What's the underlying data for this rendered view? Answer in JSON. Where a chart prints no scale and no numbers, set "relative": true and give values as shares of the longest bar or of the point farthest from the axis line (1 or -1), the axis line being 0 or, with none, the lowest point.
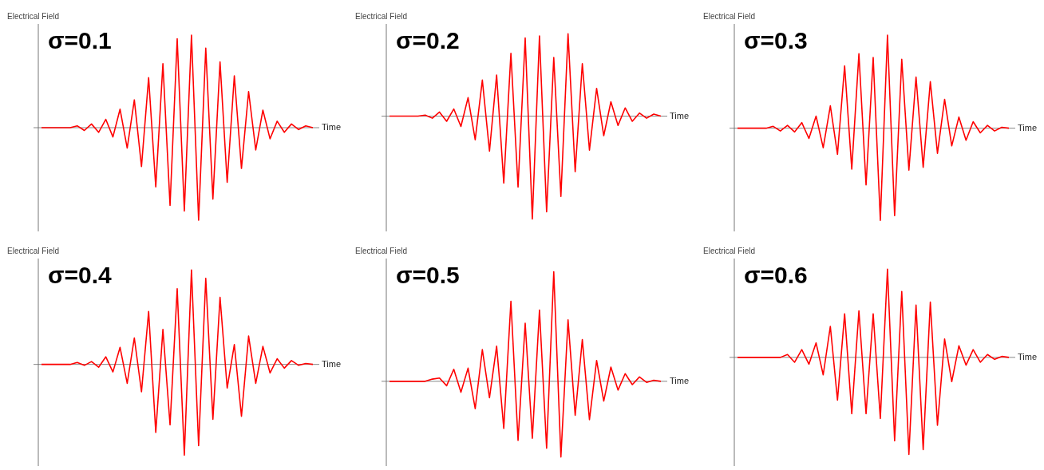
{
  "chart_data": [
    {
      "type": "line",
      "title": "σ=0.1",
      "xlabel": "Time",
      "ylabel": "Electrical Field",
      "relative": true,
      "categories": [
        null,
        null,
        null,
        null,
        null,
        null,
        null,
        null,
        null,
        null,
        null,
        null,
        null,
        null,
        null,
        null,
        null,
        null,
        null,
        null,
        null,
        null,
        null,
        null,
        null,
        null,
        null,
        null,
        null,
        null,
        null,
        null,
        null,
        null,
        null,
        null,
        null,
        null,
        null
      ],
      "series": [
        {
          "color": "#ff0000",
          "values": [
            0,
            0,
            0,
            0,
            0,
            0.02,
            -0.03,
            0.04,
            -0.05,
            0.09,
            -0.1,
            0.2,
            -0.22,
            0.3,
            -0.42,
            0.54,
            -0.64,
            0.69,
            -0.84,
            0.96,
            -0.9,
            1.0,
            -1.0,
            0.86,
            -0.77,
            0.71,
            -0.59,
            0.56,
            -0.44,
            0.39,
            -0.24,
            0.19,
            -0.12,
            0.07,
            -0.05,
            0.04,
            -0.02,
            0.02,
            0
          ]
        }
      ]
    },
    {
      "type": "line",
      "title": "σ=0.2",
      "xlabel": "Time",
      "ylabel": "Electrical Field",
      "relative": true,
      "categories": [
        null,
        null,
        null,
        null,
        null,
        null,
        null,
        null,
        null,
        null,
        null,
        null,
        null,
        null,
        null,
        null,
        null,
        null,
        null,
        null,
        null,
        null,
        null,
        null,
        null,
        null,
        null,
        null,
        null,
        null,
        null,
        null,
        null,
        null,
        null,
        null,
        null,
        null,
        null
      ],
      "series": [
        {
          "color": "#ff0000",
          "values": [
            0,
            0,
            0,
            0,
            0,
            0.01,
            -0.02,
            0.04,
            -0.05,
            0.07,
            -0.1,
            0.18,
            -0.23,
            0.35,
            -0.34,
            0.4,
            -0.65,
            0.61,
            -0.69,
            0.76,
            -1,
            0.78,
            -0.93,
            0.57,
            -0.78,
            0.8,
            -0.54,
            0.51,
            -0.33,
            0.27,
            -0.19,
            0.14,
            -0.09,
            0.08,
            -0.05,
            0.03,
            -0.02,
            0.02,
            0
          ]
        }
      ]
    },
    {
      "type": "line",
      "title": "σ=0.3",
      "xlabel": "Time",
      "ylabel": "Electrical Field",
      "relative": true,
      "categories": [
        null,
        null,
        null,
        null,
        null,
        null,
        null,
        null,
        null,
        null,
        null,
        null,
        null,
        null,
        null,
        null,
        null,
        null,
        null,
        null,
        null,
        null,
        null,
        null,
        null,
        null,
        null,
        null,
        null,
        null,
        null,
        null,
        null,
        null,
        null,
        null,
        null,
        null,
        null
      ],
      "series": [
        {
          "color": "#ff0000",
          "values": [
            0,
            0,
            0,
            0,
            0,
            0.02,
            -0.03,
            0.03,
            -0.04,
            0.06,
            -0.11,
            0.13,
            -0.21,
            0.24,
            -0.28,
            0.67,
            -0.44,
            0.8,
            -0.61,
            0.76,
            -0.99,
            1,
            -0.94,
            0.74,
            -0.45,
            0.55,
            -0.42,
            0.5,
            -0.27,
            0.31,
            -0.19,
            0.12,
            -0.13,
            0.07,
            -0.05,
            0.03,
            -0.03,
            0.01,
            0
          ]
        }
      ]
    },
    {
      "type": "line",
      "title": "σ=0.4",
      "xlabel": "Time",
      "ylabel": "Electrical Field",
      "relative": true,
      "categories": [
        null,
        null,
        null,
        null,
        null,
        null,
        null,
        null,
        null,
        null,
        null,
        null,
        null,
        null,
        null,
        null,
        null,
        null,
        null,
        null,
        null,
        null,
        null,
        null,
        null,
        null,
        null,
        null,
        null,
        null,
        null,
        null,
        null,
        null,
        null,
        null,
        null,
        null,
        null
      ],
      "series": [
        {
          "color": "#ff0000",
          "values": [
            0,
            0,
            0,
            0,
            0,
            0.02,
            -0.01,
            0.03,
            -0.03,
            0.08,
            -0.08,
            0.18,
            -0.2,
            0.28,
            -0.29,
            0.56,
            -0.72,
            0.37,
            -0.64,
            0.8,
            -0.96,
            1,
            -0.86,
            0.91,
            -0.58,
            0.71,
            -0.25,
            0.21,
            -0.55,
            0.3,
            -0.2,
            0.19,
            -0.09,
            0.06,
            -0.04,
            0.04,
            -0.01,
            0.01,
            0
          ]
        }
      ]
    },
    {
      "type": "line",
      "title": "σ=0.5",
      "xlabel": "Time",
      "ylabel": "Electrical Field",
      "relative": true,
      "categories": [
        null,
        null,
        null,
        null,
        null,
        null,
        null,
        null,
        null,
        null,
        null,
        null,
        null,
        null,
        null,
        null,
        null,
        null,
        null,
        null,
        null,
        null,
        null,
        null,
        null,
        null,
        null,
        null,
        null,
        null,
        null,
        null,
        null,
        null,
        null,
        null,
        null,
        null,
        null
      ],
      "series": [
        {
          "color": "#ff0000",
          "values": [
            0,
            0,
            0,
            0,
            0,
            0,
            0.02,
            0.03,
            -0.04,
            0.11,
            -0.1,
            0.12,
            -0.25,
            0.29,
            -0.15,
            0.32,
            -0.43,
            0.73,
            -0.54,
            0.53,
            -0.52,
            0.65,
            -0.61,
            1,
            -0.69,
            0.56,
            -0.31,
            0.38,
            -0.35,
            0.19,
            -0.18,
            0.13,
            -0.08,
            0.07,
            -0.03,
            0.04,
            -0.01,
            0.01,
            0
          ]
        }
      ]
    },
    {
      "type": "line",
      "title": "σ=0.6",
      "xlabel": "Time",
      "ylabel": "Electrical Field",
      "relative": true,
      "categories": [
        null,
        null,
        null,
        null,
        null,
        null,
        null,
        null,
        null,
        null,
        null,
        null,
        null,
        null,
        null,
        null,
        null,
        null,
        null,
        null,
        null,
        null,
        null,
        null,
        null,
        null,
        null,
        null,
        null,
        null,
        null,
        null,
        null,
        null,
        null,
        null,
        null,
        null,
        null
      ],
      "series": [
        {
          "color": "#ff0000",
          "values": [
            0,
            0,
            0,
            0,
            0,
            0,
            0,
            0.03,
            -0.05,
            0.08,
            -0.07,
            0.15,
            -0.18,
            0.32,
            -0.44,
            0.45,
            -0.58,
            0.48,
            -0.58,
            0.45,
            -0.63,
            0.91,
            -0.86,
            0.68,
            -1,
            0.54,
            -0.95,
            0.57,
            -0.7,
            0.19,
            -0.25,
            0.12,
            -0.08,
            0.08,
            -0.05,
            0.03,
            -0.02,
            0.01,
            0
          ]
        }
      ]
    }
  ]
}
